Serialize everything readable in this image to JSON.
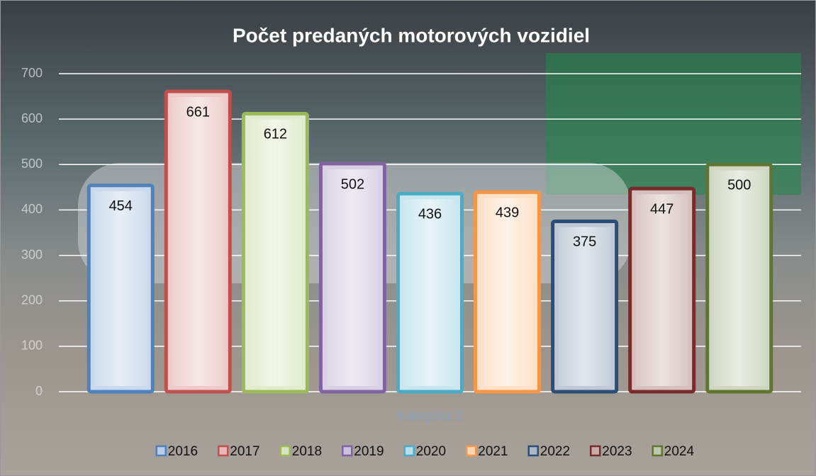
{
  "chart_data": {
    "type": "bar",
    "title": "Počet predaných motorových vozidiel",
    "categories": [
      "Kategória 1"
    ],
    "series": [
      {
        "name": "2016",
        "color": "#4f81bd",
        "values": [
          454
        ]
      },
      {
        "name": "2017",
        "color": "#c0504d",
        "values": [
          661
        ]
      },
      {
        "name": "2018",
        "color": "#9bbb59",
        "values": [
          612
        ]
      },
      {
        "name": "2019",
        "color": "#8064a2",
        "values": [
          502
        ]
      },
      {
        "name": "2020",
        "color": "#4bacc6",
        "values": [
          436
        ]
      },
      {
        "name": "2021",
        "color": "#f79646",
        "values": [
          439
        ]
      },
      {
        "name": "2022",
        "color": "#2c4d75",
        "values": [
          375
        ]
      },
      {
        "name": "2023",
        "color": "#772c2a",
        "values": [
          447
        ]
      },
      {
        "name": "2024",
        "color": "#5f7530",
        "values": [
          500
        ]
      }
    ],
    "ylim": [
      0,
      700
    ],
    "yticks": [
      0,
      100,
      200,
      300,
      400,
      500,
      600,
      700
    ],
    "grid": true,
    "legend": "bottom"
  }
}
